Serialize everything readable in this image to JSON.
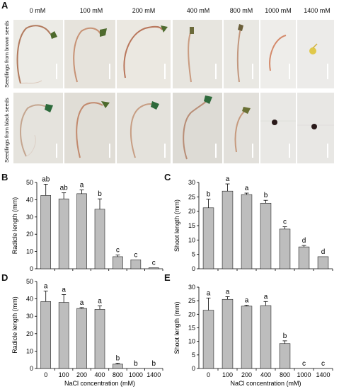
{
  "figure": {
    "panel_a": {
      "letter": "A",
      "concentrations": [
        "0 mM",
        "100 mM",
        "200 mM",
        "400 mM",
        "800 mM",
        "1000 mM",
        "1400 mM"
      ],
      "row_labels": [
        "Seedlings from brown seeds",
        "Seedlings from black seeds"
      ]
    }
  },
  "chart_data": [
    {
      "panel": "B",
      "type": "bar",
      "categories": [
        "0",
        "100",
        "200",
        "400",
        "800",
        "1000",
        "1400"
      ],
      "values": [
        42.5,
        40.5,
        43.5,
        34.5,
        7.0,
        5.2,
        0.6
      ],
      "errors": [
        6.5,
        3.5,
        2.2,
        6.0,
        1.0,
        0,
        0
      ],
      "letters": [
        "ab",
        "ab",
        "a",
        "b",
        "c",
        "c",
        "c"
      ],
      "ylabel": "Radicle length (mm)",
      "xlabel": "",
      "ylim": [
        0,
        50
      ],
      "yticks": [
        0,
        10,
        20,
        30,
        40,
        50
      ],
      "show_xticklabels": false
    },
    {
      "panel": "C",
      "type": "bar",
      "categories": [
        "0",
        "100",
        "200",
        "400",
        "800",
        "1000",
        "1400"
      ],
      "values": [
        21.2,
        27.0,
        25.8,
        22.8,
        13.8,
        7.6,
        4.2
      ],
      "errors": [
        3.0,
        2.5,
        0.5,
        1.0,
        0.8,
        0.5,
        0
      ],
      "letters": [
        "b",
        "a",
        "a",
        "b",
        "c",
        "d",
        "d"
      ],
      "ylabel": "Shoot length (mm)",
      "xlabel": "",
      "ylim": [
        0,
        30
      ],
      "yticks": [
        0,
        5,
        10,
        15,
        20,
        25,
        30
      ],
      "show_xticklabels": false
    },
    {
      "panel": "D",
      "type": "bar",
      "categories": [
        "0",
        "100",
        "200",
        "400",
        "800",
        "1000",
        "1400"
      ],
      "values": [
        38.5,
        38.0,
        34.5,
        34.0,
        2.5,
        0,
        0
      ],
      "errors": [
        6.0,
        4.5,
        0.5,
        2.0,
        0.5,
        0,
        0
      ],
      "letters": [
        "a",
        "a",
        "a",
        "a",
        "b",
        "b",
        "b"
      ],
      "ylabel": "Radicle length (mm)",
      "xlabel": "NaCl concentration (mM)",
      "ylim": [
        0,
        50
      ],
      "yticks": [
        0,
        10,
        20,
        30,
        40,
        50
      ],
      "show_xticklabels": true
    },
    {
      "panel": "E",
      "type": "bar",
      "categories": [
        "0",
        "100",
        "200",
        "400",
        "800",
        "1000",
        "1400"
      ],
      "values": [
        21.5,
        25.5,
        23.0,
        23.2,
        9.2,
        0,
        0
      ],
      "errors": [
        4.5,
        1.0,
        0.3,
        1.5,
        1.0,
        0,
        0
      ],
      "letters": [
        "a",
        "a",
        "a",
        "a",
        "b",
        "c",
        "c"
      ],
      "ylabel": "Shoot length (mm)",
      "xlabel": "NaCl concentration (mM)",
      "ylim": [
        0,
        30
      ],
      "yticks": [
        0,
        5,
        10,
        15,
        20,
        25,
        30
      ],
      "show_xticklabels": true
    }
  ]
}
